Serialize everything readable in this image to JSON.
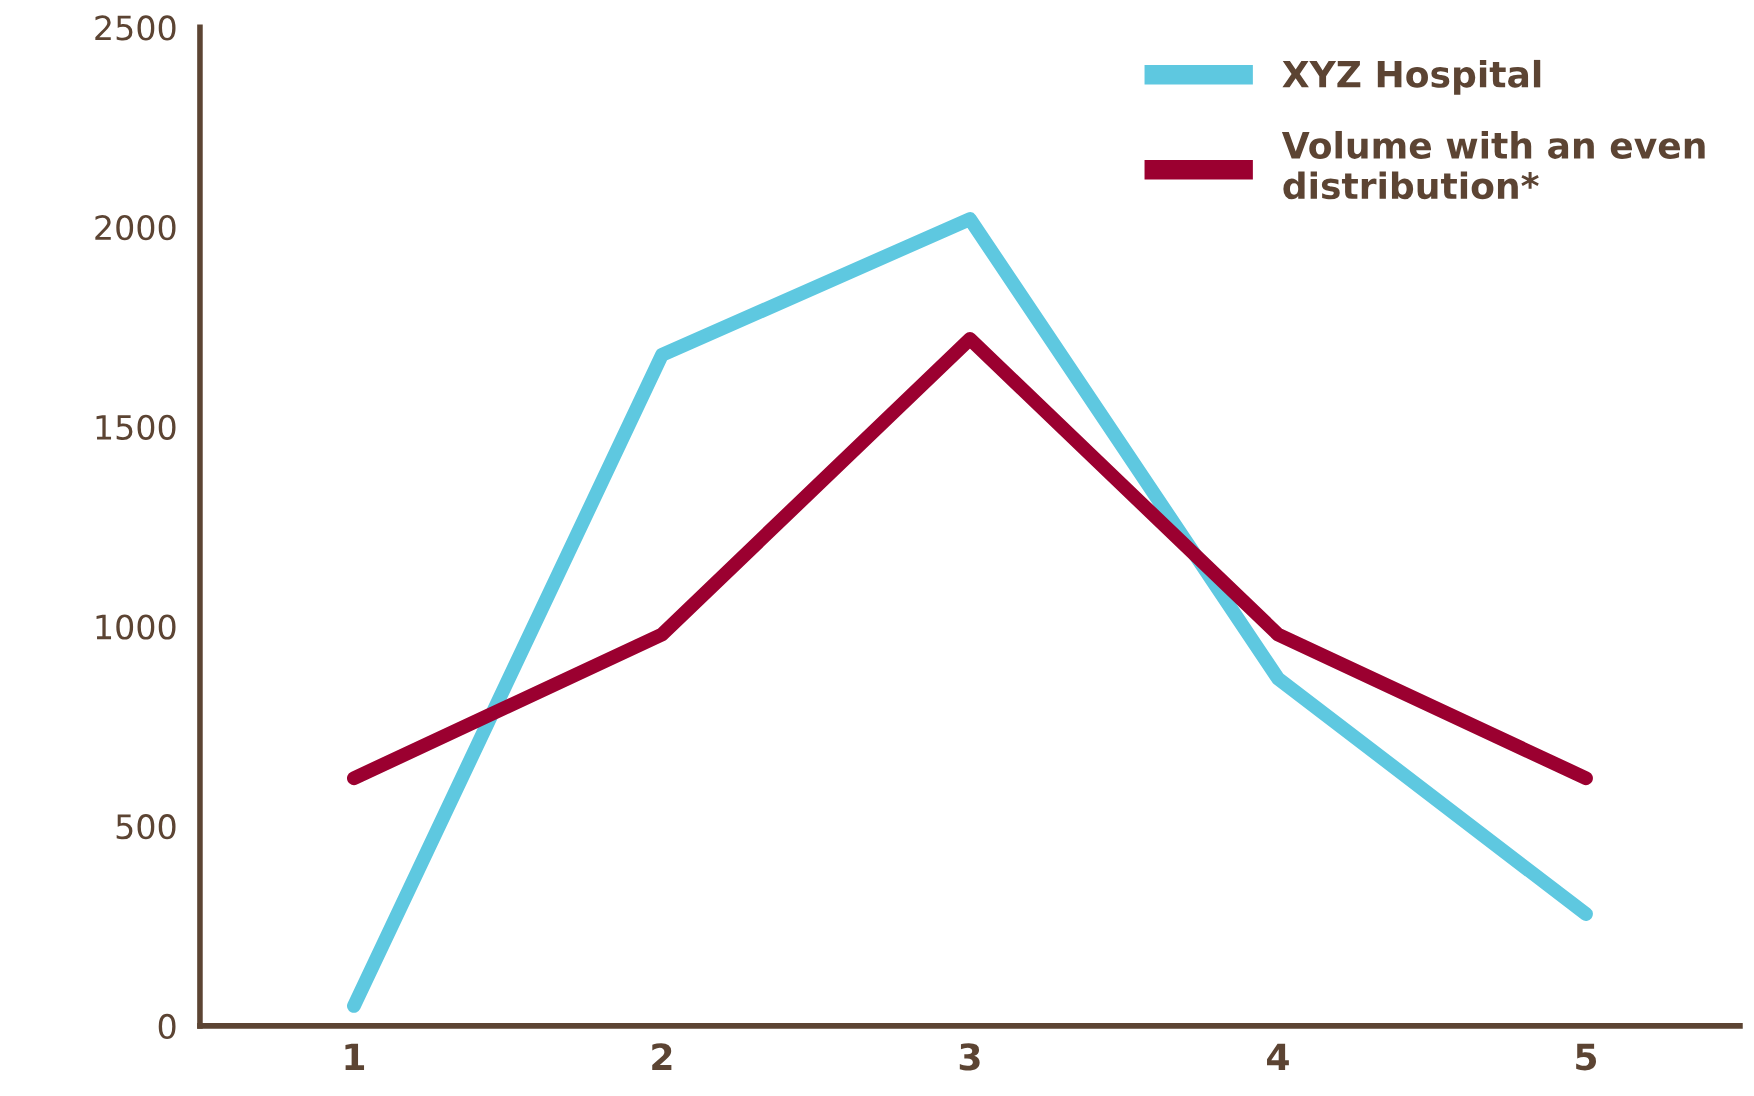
{
  "chart_data": {
    "type": "line",
    "categories": [
      "1",
      "2",
      "3",
      "4",
      "5"
    ],
    "series": [
      {
        "name": "XYZ Hospital",
        "color": "#5ec8e0",
        "values": [
          50,
          1680,
          2020,
          870,
          280
        ]
      },
      {
        "name": "Volume with an even\ndistribution*",
        "color": "#9b0030",
        "values": [
          620,
          980,
          1720,
          980,
          620
        ]
      }
    ],
    "ylim": [
      0,
      2500
    ],
    "yticks": [
      0,
      500,
      1000,
      1500,
      2000,
      2500
    ],
    "grid": false,
    "legend": "top right",
    "marker": "none",
    "line_style": "solid"
  }
}
